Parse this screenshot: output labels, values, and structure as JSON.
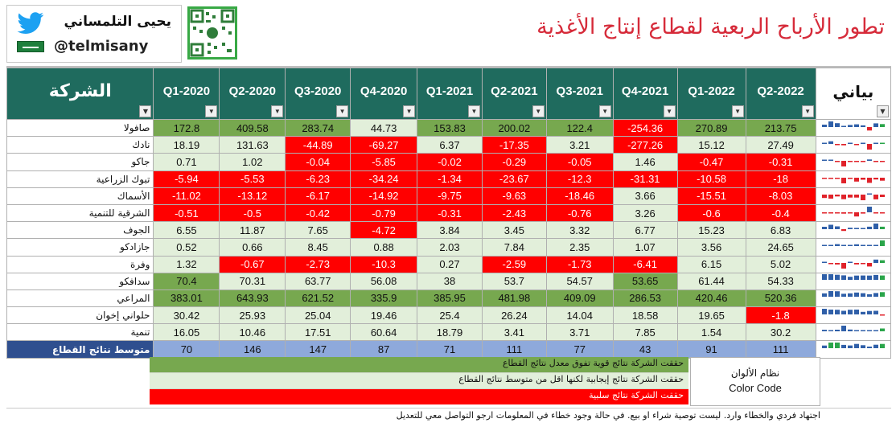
{
  "header": {
    "title": "تطور الأرباح الربعية لقطاع إنتاج الأغذية",
    "author_name": "يحيى التلمساني",
    "author_handle": "@telmisany"
  },
  "table": {
    "company_header": "الشركة",
    "sparkline_header": "بياني",
    "quarters": [
      "Q1-2020",
      "Q2-2020",
      "Q3-2020",
      "Q4-2020",
      "Q1-2021",
      "Q2-2021",
      "Q3-2021",
      "Q4-2021",
      "Q1-2022",
      "Q2-2022"
    ],
    "rows": [
      {
        "name": "صافولا",
        "values": [
          "172.8",
          "409.58",
          "283.74",
          "44.73",
          "153.83",
          "200.02",
          "122.4",
          "-254.36",
          "270.89",
          "213.75"
        ]
      },
      {
        "name": "نادك",
        "values": [
          "18.19",
          "131.63",
          "-44.89",
          "-69.27",
          "6.37",
          "-17.35",
          "3.21",
          "-277.26",
          "15.12",
          "27.49"
        ]
      },
      {
        "name": "جاكو",
        "values": [
          "0.71",
          "1.02",
          "-0.04",
          "-5.85",
          "-0.02",
          "-0.29",
          "-0.05",
          "1.46",
          "-0.47",
          "-0.31"
        ]
      },
      {
        "name": "تبوك الزراعية",
        "values": [
          "-5.94",
          "-5.53",
          "-6.23",
          "-34.24",
          "-1.34",
          "-23.67",
          "-12.3",
          "-31.31",
          "-10.58",
          "-18"
        ]
      },
      {
        "name": "الأسماك",
        "values": [
          "-11.02",
          "-13.12",
          "-6.17",
          "-14.92",
          "-9.75",
          "-9.63",
          "-18.46",
          "3.66",
          "-15.51",
          "-8.03"
        ]
      },
      {
        "name": "الشرقية للتنمية",
        "values": [
          "-0.51",
          "-0.5",
          "-0.42",
          "-0.79",
          "-0.31",
          "-2.43",
          "-0.76",
          "3.26",
          "-0.6",
          "-0.4"
        ]
      },
      {
        "name": "الجوف",
        "values": [
          "6.55",
          "11.87",
          "7.65",
          "-4.72",
          "3.84",
          "3.45",
          "3.32",
          "6.77",
          "15.23",
          "6.83"
        ]
      },
      {
        "name": "جازادكو",
        "values": [
          "0.52",
          "0.66",
          "8.45",
          "0.88",
          "2.03",
          "7.84",
          "2.35",
          "1.07",
          "3.56",
          "24.65"
        ]
      },
      {
        "name": "وفرة",
        "values": [
          "1.32",
          "-0.67",
          "-2.73",
          "-10.3",
          "0.27",
          "-2.59",
          "-1.73",
          "-6.41",
          "6.15",
          "5.02"
        ]
      },
      {
        "name": "سدافكو",
        "values": [
          "70.4",
          "70.31",
          "63.77",
          "56.08",
          "38",
          "53.7",
          "54.57",
          "53.65",
          "61.44",
          "54.33"
        ]
      },
      {
        "name": "المراعي",
        "values": [
          "383.01",
          "643.93",
          "621.52",
          "335.9",
          "385.95",
          "481.98",
          "409.09",
          "286.53",
          "420.46",
          "520.36"
        ]
      },
      {
        "name": "حلواني إخوان",
        "values": [
          "30.42",
          "25.93",
          "25.04",
          "19.46",
          "25.4",
          "26.24",
          "14.04",
          "18.58",
          "19.65",
          "-1.8"
        ]
      },
      {
        "name": "تنمية",
        "values": [
          "16.05",
          "10.46",
          "17.51",
          "60.64",
          "18.79",
          "3.41",
          "3.71",
          "7.85",
          "1.54",
          "30.2"
        ]
      }
    ],
    "average_row": {
      "name": "متوسط نتائج القطاع",
      "values": [
        "70",
        "146",
        "147",
        "87",
        "71",
        "111",
        "77",
        "43",
        "91",
        "111"
      ]
    }
  },
  "legend": {
    "strong": "حققت الشركة نتائج قوية تفوق معدل نتائج القطاع",
    "positive": "حققت الشركة نتائج إيجابية لكنها اقل من متوسط نتائج القطاع",
    "negative": "حققت الشركة نتائج سلبية",
    "color_code_ar": "نظام الألوان",
    "color_code_en": "Color Code"
  },
  "disclaimer": "اجتهاد فردي والخطاء وارد. ليست توصية شراء او بيع. في حالة وجود خطاء في المعلومات ارجو التواصل معي للتعديل",
  "colors": {
    "header_bg": "#1f6b5e",
    "title": "#d62b3a",
    "strong": "#77a84f",
    "positive": "#e2efda",
    "negative": "#ff0000",
    "average_row": "#8ea9db",
    "average_label": "#2f4f8f",
    "spark_pos": "#2f5fa8",
    "spark_neg": "#e0222a",
    "spark_last_pos": "#2aa54a"
  }
}
